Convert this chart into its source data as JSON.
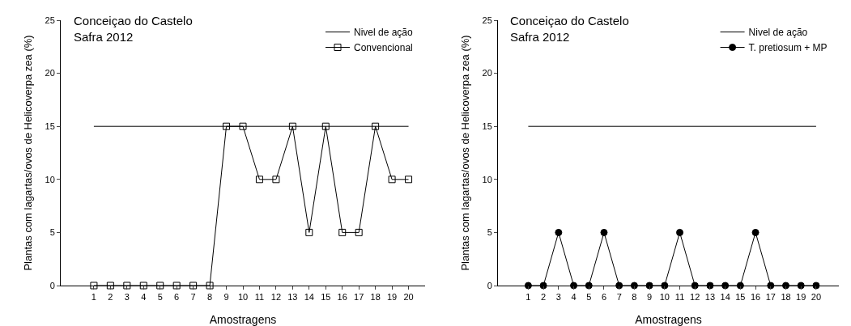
{
  "chart_data": [
    {
      "type": "line",
      "title": "Conceiçao do Castelo\nSafra 2012",
      "xlabel": "Amostragens",
      "ylabel": "Plantas com lagartas/ovos de Helicoverpa zea (%)",
      "xlim": [
        -1,
        21
      ],
      "xticks": [
        1,
        2,
        3,
        4,
        5,
        6,
        7,
        8,
        9,
        10,
        11,
        12,
        13,
        14,
        15,
        16,
        17,
        18,
        19,
        20
      ],
      "ylim": [
        0,
        25
      ],
      "yticks": [
        0,
        5,
        10,
        15,
        20,
        25
      ],
      "grid": false,
      "legend": "top right",
      "marker": "square",
      "series": [
        {
          "name": "Nivel de ação",
          "color": "#000000",
          "marker": "none",
          "x": [
            1,
            20
          ],
          "values": [
            15,
            15
          ]
        },
        {
          "name": "Convencional",
          "color": "#000000",
          "x": [
            1,
            2,
            3,
            4,
            5,
            6,
            7,
            8,
            9,
            10,
            11,
            12,
            13,
            14,
            15,
            16,
            17,
            18,
            19,
            20
          ],
          "values": [
            0,
            0,
            0,
            0,
            0,
            0,
            0,
            0,
            15,
            15,
            10,
            10,
            15,
            5,
            15,
            5,
            5,
            15,
            10,
            10
          ]
        }
      ]
    },
    {
      "type": "line",
      "title": "Conceiçao do Castelo\nSafra 2012",
      "xlabel": "Amostragens",
      "ylabel": "Plantas com lagartas/ovos de Helicoverpa zea (%)",
      "xlim": [
        -1,
        21.5
      ],
      "xticks": [
        1,
        2,
        3,
        4,
        5,
        6,
        7,
        8,
        9,
        10,
        11,
        12,
        13,
        14,
        15,
        16,
        17,
        18,
        19,
        20
      ],
      "ylim": [
        0,
        25
      ],
      "yticks": [
        0,
        5,
        10,
        15,
        20,
        25
      ],
      "grid": false,
      "legend": "top right",
      "marker": "circle",
      "series": [
        {
          "name": "Nivel de ação",
          "color": "#000000",
          "marker": "none",
          "x": [
            1,
            20
          ],
          "values": [
            15,
            15
          ]
        },
        {
          "name": "T. pretiosum + MP",
          "color": "#000000",
          "x": [
            1,
            2,
            3,
            4,
            5,
            6,
            7,
            8,
            9,
            10,
            11,
            12,
            13,
            14,
            15,
            16,
            17,
            18,
            19,
            20
          ],
          "values": [
            0,
            0,
            5,
            0,
            0,
            5,
            0,
            0,
            0,
            0,
            5,
            0,
            0,
            0,
            0,
            5,
            0,
            0,
            0,
            0
          ]
        }
      ]
    }
  ]
}
